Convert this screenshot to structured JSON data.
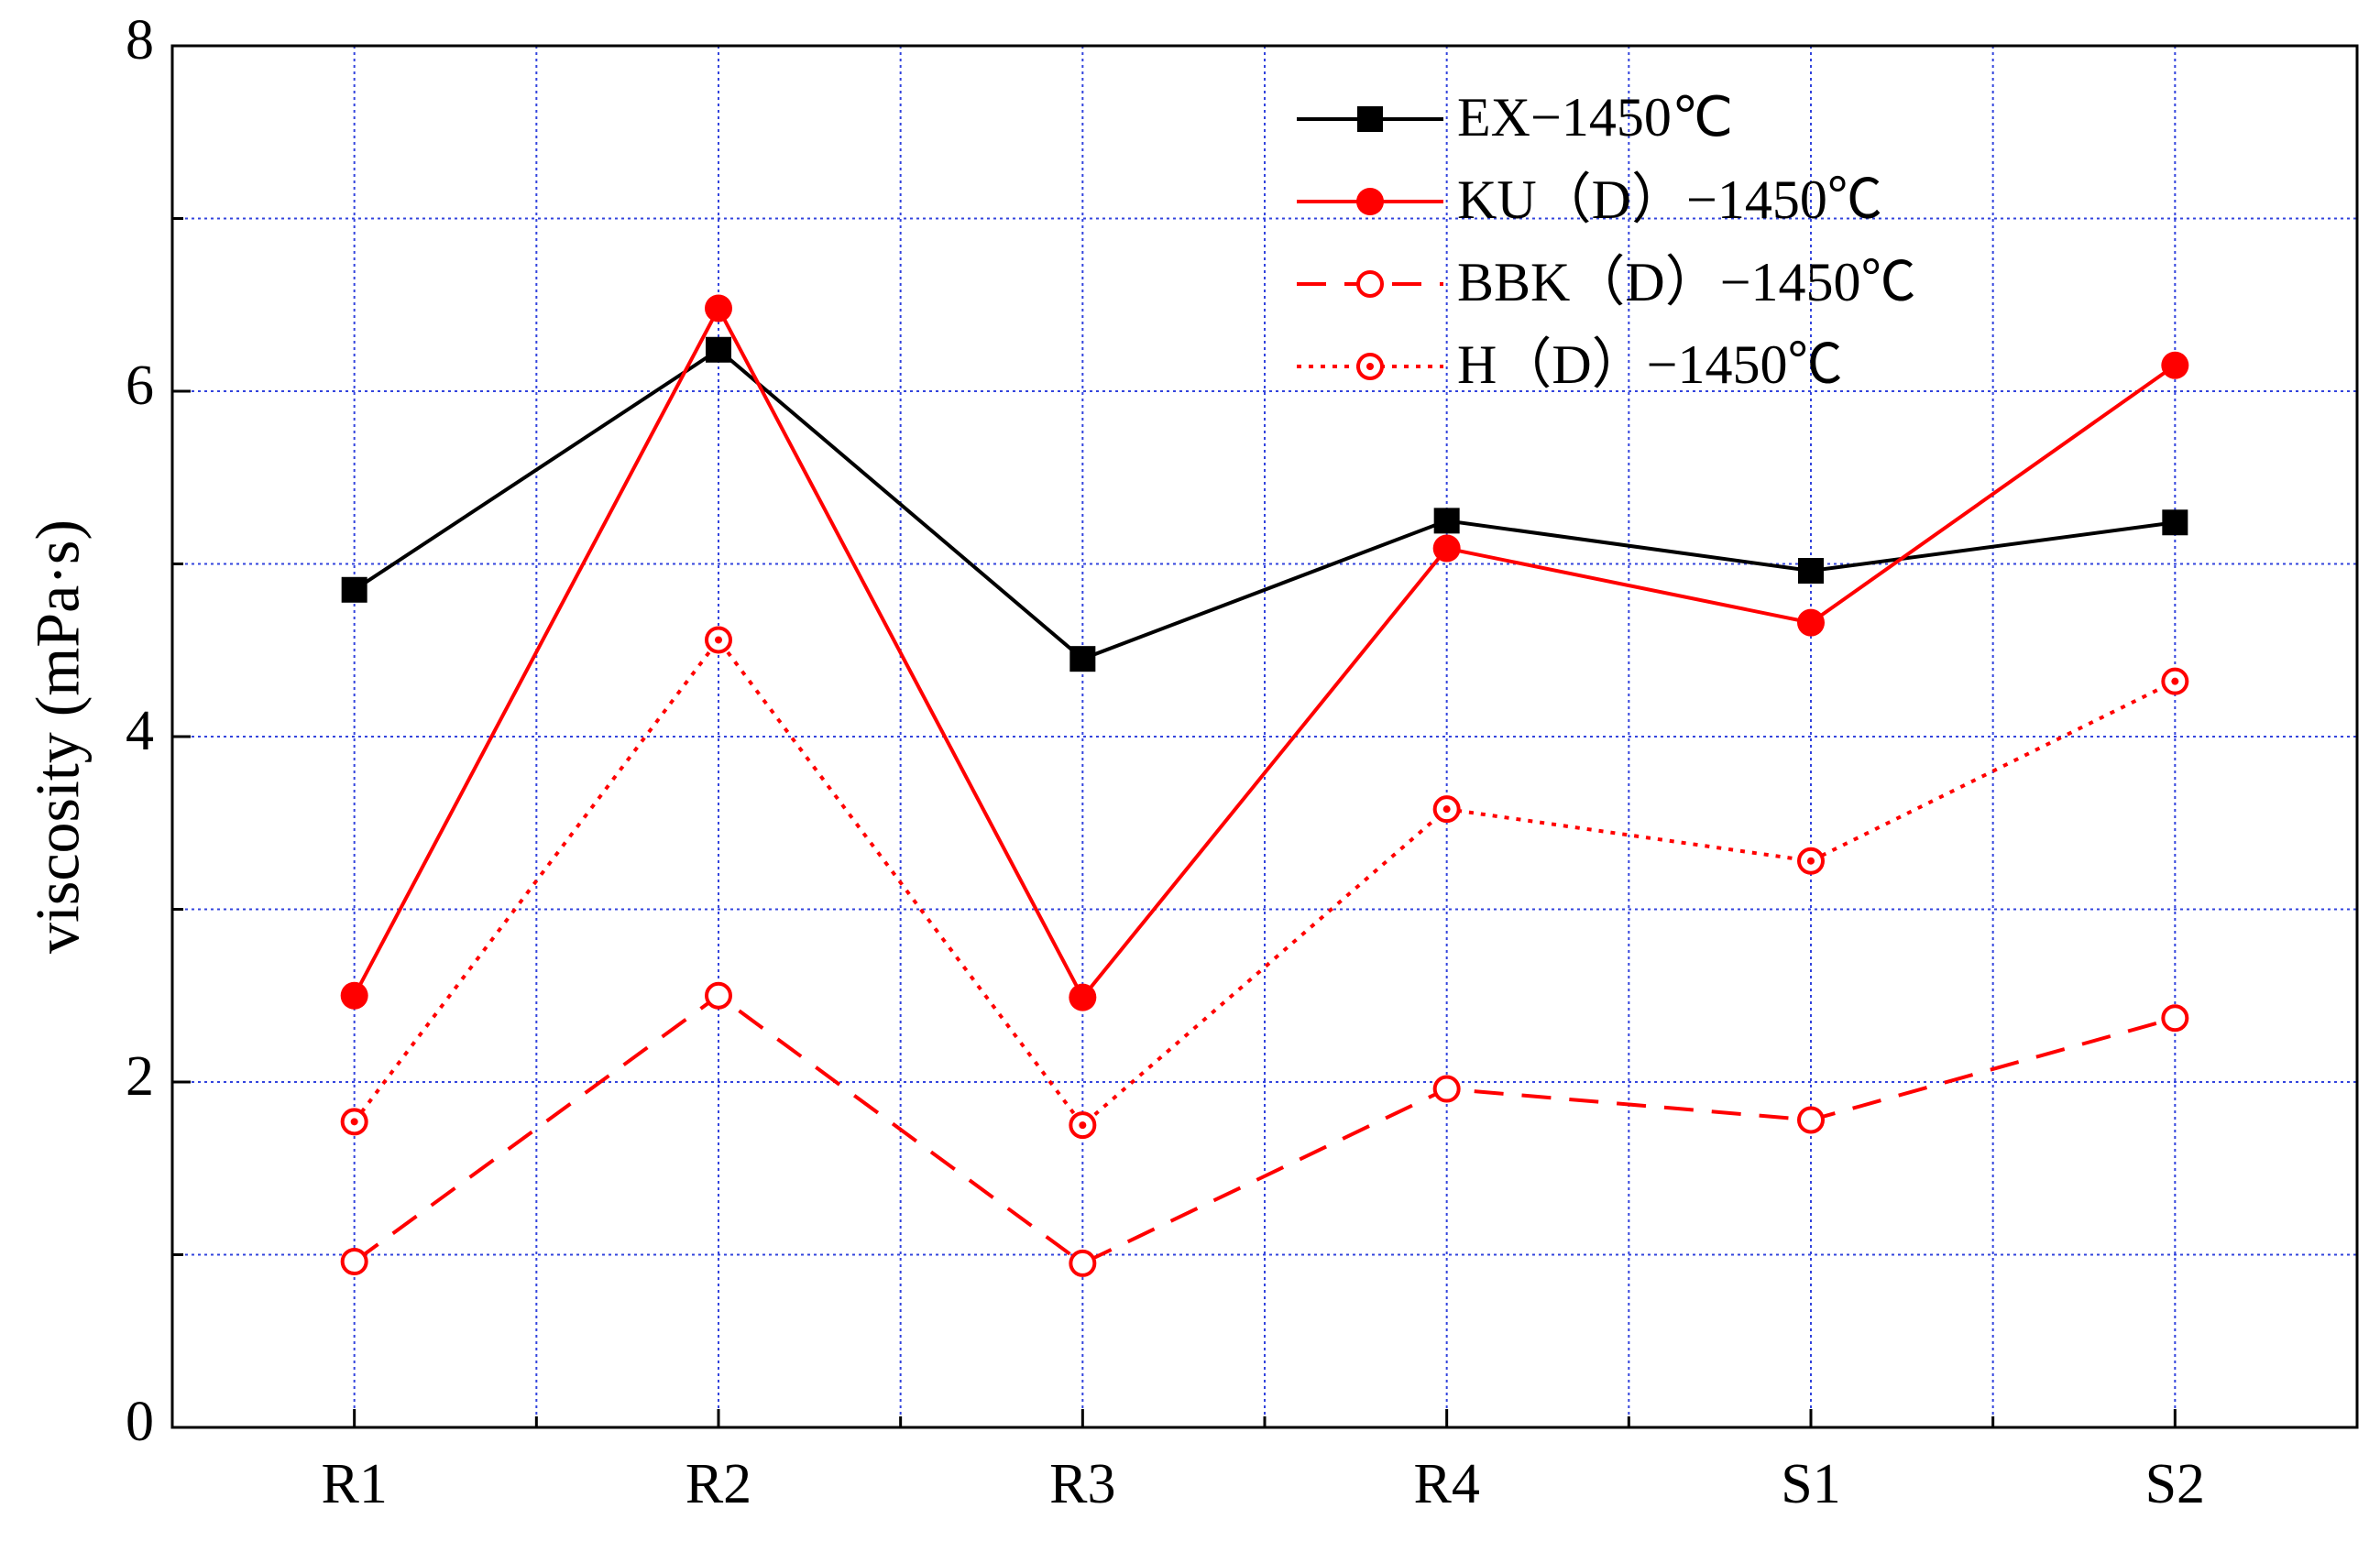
{
  "chart_data": {
    "type": "line",
    "y_label": "viscosity (mPa·s)",
    "categories": [
      "R1",
      "R2",
      "R3",
      "R4",
      "S1",
      "S2"
    ],
    "series": [
      {
        "name": "EX−1450℃",
        "color": "#000000",
        "marker": "square",
        "dash": "solid",
        "values": [
          4.85,
          6.24,
          4.45,
          5.25,
          4.96,
          5.24
        ]
      },
      {
        "name": "KU（D）−1450℃",
        "color": "#ff0000",
        "marker": "circle",
        "dash": "solid",
        "values": [
          2.5,
          6.48,
          2.49,
          5.09,
          4.66,
          6.15
        ]
      },
      {
        "name": "BBK（D）−1450℃",
        "color": "#ff0000",
        "marker": "open-circle",
        "dash": "dashed",
        "values": [
          0.96,
          2.5,
          0.95,
          1.96,
          1.78,
          2.37
        ]
      },
      {
        "name": "H（D）−1450℃",
        "color": "#ff0000",
        "marker": "dot-circle",
        "dash": "dotted",
        "values": [
          1.77,
          4.56,
          1.75,
          3.58,
          3.28,
          4.32
        ]
      }
    ],
    "ylim": [
      0,
      8
    ],
    "yticks": [
      0,
      2,
      4,
      6,
      8
    ],
    "yminorticks": [
      1,
      3,
      5,
      7
    ],
    "grid": true,
    "grid_color": "#3344dd",
    "legend": "top-right"
  }
}
